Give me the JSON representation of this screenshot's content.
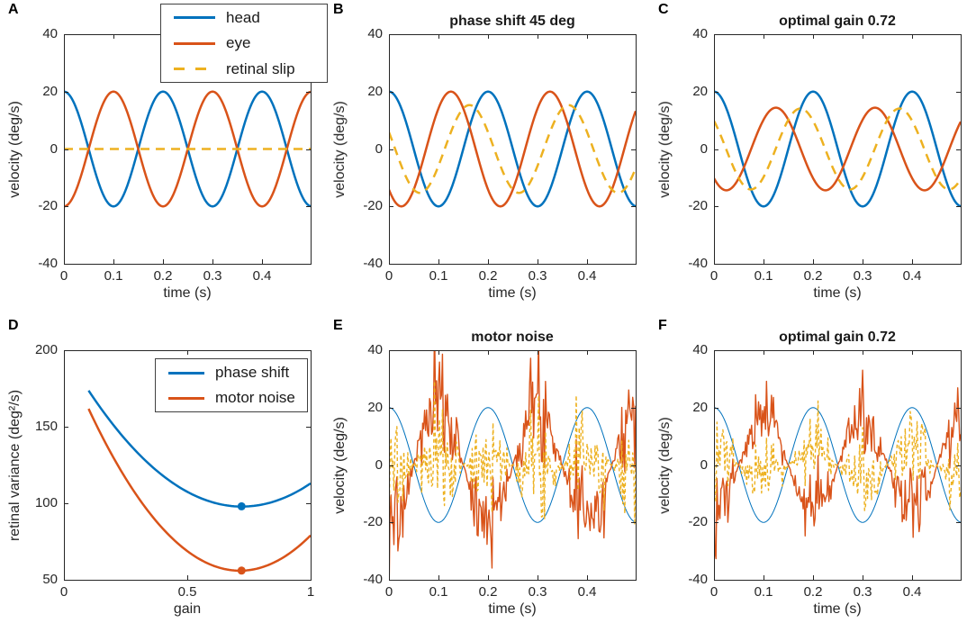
{
  "figure": {
    "background": "#ffffff",
    "axis_color": "#262626",
    "palette": {
      "head_blue": "#0072BD",
      "eye_red": "#D95319",
      "slip_yellow": "#EDB120"
    }
  },
  "chart_data": [
    {
      "panel_label": "A",
      "type": "line",
      "title": "",
      "xlabel": "time (s)",
      "ylabel": "velocity (deg/s)",
      "xlim": [
        0,
        0.498
      ],
      "ylim": [
        -40,
        40
      ],
      "xticks": [
        0,
        0.1,
        0.2,
        0.3,
        0.4
      ],
      "xtick_labels": [
        "0",
        "0.1",
        "0.2",
        "0.3",
        "0.4"
      ],
      "yticks": [
        -40,
        -20,
        0,
        20,
        40
      ],
      "ytick_labels": [
        "-40",
        "-20",
        "0",
        "20",
        "40"
      ],
      "grid": false,
      "legend": {
        "position": "north",
        "entries": [
          {
            "label": "head",
            "color": "#0072BD",
            "dash": false
          },
          {
            "label": "eye",
            "color": "#D95319",
            "dash": false
          },
          {
            "label": "retinal slip",
            "color": "#EDB120",
            "dash": true
          }
        ]
      },
      "series": [
        {
          "name": "head",
          "color": "#0072BD",
          "width": 2.5,
          "dash": null,
          "gen": {
            "kind": "cos",
            "amplitude": 20,
            "freq_hz": 5,
            "phase_deg": 0
          }
        },
        {
          "name": "eye",
          "color": "#D95319",
          "width": 2.5,
          "dash": null,
          "gen": {
            "kind": "cos",
            "amplitude": -20,
            "freq_hz": 5,
            "phase_deg": 0
          }
        },
        {
          "name": "retinal slip",
          "color": "#EDB120",
          "width": 2.5,
          "dash": [
            10,
            7
          ],
          "gen": {
            "kind": "const",
            "value": 0
          }
        }
      ]
    },
    {
      "panel_label": "B",
      "type": "line",
      "title": "phase shift 45 deg",
      "xlabel": "time (s)",
      "ylabel": "velocity (deg/s)",
      "xlim": [
        0,
        0.498
      ],
      "ylim": [
        -40,
        40
      ],
      "xticks": [
        0,
        0.1,
        0.2,
        0.3,
        0.4
      ],
      "xtick_labels": [
        "0",
        "0.1",
        "0.2",
        "0.3",
        "0.4"
      ],
      "yticks": [
        -40,
        -20,
        0,
        20,
        40
      ],
      "ytick_labels": [
        "-40",
        "-20",
        "0",
        "20",
        "40"
      ],
      "grid": false,
      "legend": null,
      "series": [
        {
          "name": "head",
          "color": "#0072BD",
          "width": 2.5,
          "dash": null,
          "gen": {
            "kind": "cos",
            "amplitude": 20,
            "freq_hz": 5,
            "phase_deg": 0
          }
        },
        {
          "name": "eye",
          "color": "#D95319",
          "width": 2.5,
          "dash": null,
          "gen": {
            "kind": "cos",
            "amplitude": -20,
            "freq_hz": 5,
            "phase_deg": 45
          }
        },
        {
          "name": "retinal slip",
          "color": "#EDB120",
          "width": 2.5,
          "dash": [
            10,
            7
          ],
          "gen": {
            "kind": "cos",
            "amplitude": 15.3,
            "freq_hz": 5,
            "phase_deg": -67.5
          }
        }
      ]
    },
    {
      "panel_label": "C",
      "type": "line",
      "title": "optimal gain 0.72",
      "xlabel": "time (s)",
      "ylabel": "velocity (deg/s)",
      "xlim": [
        0,
        0.498
      ],
      "ylim": [
        -40,
        40
      ],
      "xticks": [
        0,
        0.1,
        0.2,
        0.3,
        0.4
      ],
      "xtick_labels": [
        "0",
        "0.1",
        "0.2",
        "0.3",
        "0.4"
      ],
      "yticks": [
        -40,
        -20,
        0,
        20,
        40
      ],
      "ytick_labels": [
        "-40",
        "-20",
        "0",
        "20",
        "40"
      ],
      "grid": false,
      "legend": null,
      "series": [
        {
          "name": "head",
          "color": "#0072BD",
          "width": 2.5,
          "dash": null,
          "gen": {
            "kind": "cos",
            "amplitude": 20,
            "freq_hz": 5,
            "phase_deg": 0
          }
        },
        {
          "name": "eye",
          "color": "#D95319",
          "width": 2.5,
          "dash": null,
          "gen": {
            "kind": "cos",
            "amplitude": -14.4,
            "freq_hz": 5,
            "phase_deg": 45
          }
        },
        {
          "name": "retinal slip",
          "color": "#EDB120",
          "width": 2.5,
          "dash": [
            10,
            7
          ],
          "gen": {
            "kind": "cos",
            "amplitude": 14.1,
            "freq_hz": 5,
            "phase_deg": -46
          }
        }
      ]
    },
    {
      "panel_label": "D",
      "type": "line",
      "title": "",
      "xlabel": "gain",
      "ylabel": "retinal variance (deg²/s)",
      "xlim": [
        0,
        1
      ],
      "ylim": [
        50,
        200
      ],
      "xticks": [
        0,
        0.5,
        1
      ],
      "xtick_labels": [
        "0",
        "0.5",
        "1"
      ],
      "yticks": [
        50,
        100,
        150,
        200
      ],
      "ytick_labels": [
        "50",
        "100",
        "150",
        "200"
      ],
      "grid": false,
      "legend": {
        "position": "northeast",
        "entries": [
          {
            "label": "phase shift",
            "color": "#0072BD",
            "dash": false
          },
          {
            "label": "motor noise",
            "color": "#D95319",
            "dash": false
          }
        ]
      },
      "series": [
        {
          "name": "phase shift",
          "color": "#0072BD",
          "width": 2.5,
          "dash": null,
          "gen": {
            "kind": "quad",
            "a": 196,
            "b": -283,
            "c": 200,
            "x_start": 0.1,
            "x_end": 1
          },
          "marker": {
            "x": 0.72,
            "y": 98
          }
        },
        {
          "name": "motor noise",
          "color": "#D95319",
          "width": 2.5,
          "dash": null,
          "gen": {
            "kind": "quad",
            "a": 281,
            "b": -401,
            "c": 199,
            "x_start": 0.1,
            "x_end": 1
          },
          "marker": {
            "x": 0.72,
            "y": 56
          }
        }
      ]
    },
    {
      "panel_label": "E",
      "type": "line",
      "title": "motor noise",
      "xlabel": "time (s)",
      "ylabel": "velocity (deg/s)",
      "xlim": [
        0,
        0.498
      ],
      "ylim": [
        -40,
        40
      ],
      "xticks": [
        0,
        0.1,
        0.2,
        0.3,
        0.4
      ],
      "xtick_labels": [
        "0",
        "0.1",
        "0.2",
        "0.3",
        "0.4"
      ],
      "yticks": [
        -40,
        -20,
        0,
        20,
        40
      ],
      "ytick_labels": [
        "-40",
        "-20",
        "0",
        "20",
        "40"
      ],
      "grid": false,
      "legend": null,
      "series": [
        {
          "name": "head",
          "color": "#0072BD",
          "width": 1,
          "dash": null,
          "gen": {
            "kind": "cos",
            "amplitude": 20,
            "freq_hz": 5,
            "phase_deg": 0
          }
        },
        {
          "name": "eye",
          "color": "#D95319",
          "width": 1.4,
          "dash": null,
          "gen": {
            "kind": "noisy_eye",
            "gain": 1.0,
            "amplitude": 20,
            "freq_hz": 5,
            "noise_sd": 0.5,
            "seed": 7
          }
        },
        {
          "name": "retinal slip",
          "color": "#EDB120",
          "width": 1.4,
          "dash": [
            4,
            3
          ],
          "gen": {
            "kind": "noisy_slip",
            "gain": 1.0,
            "amplitude": 20,
            "freq_hz": 5,
            "noise_sd": 0.5,
            "seed": 7
          }
        }
      ]
    },
    {
      "panel_label": "F",
      "type": "line",
      "title": "optimal gain 0.72",
      "xlabel": "time (s)",
      "ylabel": "velocity (deg/s)",
      "xlim": [
        0,
        0.498
      ],
      "ylim": [
        -40,
        40
      ],
      "xticks": [
        0,
        0.1,
        0.2,
        0.3,
        0.4
      ],
      "xtick_labels": [
        "0",
        "0.1",
        "0.2",
        "0.3",
        "0.4"
      ],
      "yticks": [
        -40,
        -20,
        0,
        20,
        40
      ],
      "ytick_labels": [
        "-40",
        "-20",
        "0",
        "20",
        "40"
      ],
      "grid": false,
      "legend": null,
      "series": [
        {
          "name": "head",
          "color": "#0072BD",
          "width": 1,
          "dash": null,
          "gen": {
            "kind": "cos",
            "amplitude": 20,
            "freq_hz": 5,
            "phase_deg": 0
          }
        },
        {
          "name": "eye",
          "color": "#D95319",
          "width": 1.4,
          "dash": null,
          "gen": {
            "kind": "noisy_eye",
            "gain": 0.72,
            "amplitude": 20,
            "freq_hz": 5,
            "noise_sd": 0.5,
            "seed": 13
          }
        },
        {
          "name": "retinal slip",
          "color": "#EDB120",
          "width": 1.4,
          "dash": [
            4,
            3
          ],
          "gen": {
            "kind": "noisy_slip",
            "gain": 0.72,
            "amplitude": 20,
            "freq_hz": 5,
            "noise_sd": 0.5,
            "seed": 13
          }
        }
      ]
    }
  ]
}
